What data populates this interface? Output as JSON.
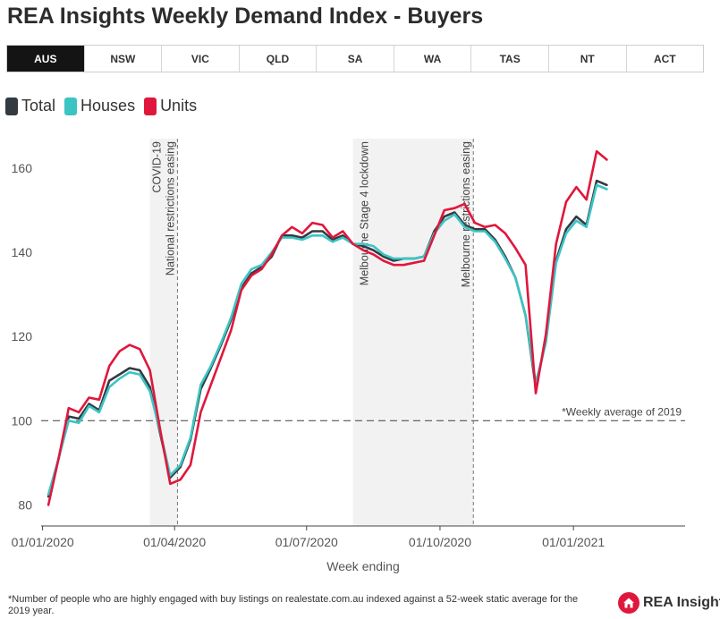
{
  "header": {
    "title": "REA Insights Weekly Demand Index - Buyers"
  },
  "tabs": [
    {
      "label": "AUS",
      "active": true
    },
    {
      "label": "NSW",
      "active": false
    },
    {
      "label": "VIC",
      "active": false
    },
    {
      "label": "QLD",
      "active": false
    },
    {
      "label": "SA",
      "active": false
    },
    {
      "label": "WA",
      "active": false
    },
    {
      "label": "TAS",
      "active": false
    },
    {
      "label": "NT",
      "active": false
    },
    {
      "label": "ACT",
      "active": false
    }
  ],
  "legend": [
    {
      "label": "Total",
      "color": "#333a40"
    },
    {
      "label": "Houses",
      "color": "#3cc4c4"
    },
    {
      "label": "Units",
      "color": "#e0173c"
    }
  ],
  "chart_data": {
    "type": "line",
    "xlabel": "Week ending",
    "ylabel": "",
    "ylim": [
      75,
      167
    ],
    "yticks": [
      80,
      100,
      120,
      140,
      160
    ],
    "xticks": [
      {
        "label": "01/01/2020",
        "date": "2020-01-01"
      },
      {
        "label": "01/04/2020",
        "date": "2020-04-01"
      },
      {
        "label": "01/07/2020",
        "date": "2020-07-01"
      },
      {
        "label": "01/10/2020",
        "date": "2020-10-01"
      },
      {
        "label": "01/01/2021",
        "date": "2021-01-01"
      }
    ],
    "x_start": "2020-01-05",
    "x_step_days": 7,
    "reference_line": {
      "value": 100,
      "label": "*Weekly average of 2019"
    },
    "shaded_periods": [
      {
        "from": "2020-03-15",
        "to": "2020-04-03"
      },
      {
        "from": "2020-08-02",
        "to": "2020-10-24"
      }
    ],
    "event_lines": [
      {
        "date": "2020-04-03",
        "label": "COVID-19\nNational restrictions easing"
      },
      {
        "date": "2020-10-24",
        "label": "Melbourne restrictions easing"
      },
      {
        "date": "2020-08-02",
        "label": "Melbourne Stage 4 lockdown"
      }
    ],
    "series": [
      {
        "name": "Total",
        "color": "#333a40",
        "values": [
          82,
          91,
          101,
          100.5,
          104,
          102.5,
          109.5,
          111,
          112.5,
          112,
          108,
          97,
          86.5,
          89,
          95.5,
          107.5,
          112.5,
          118,
          124,
          131.5,
          135,
          136.5,
          139,
          144,
          144,
          143.5,
          145,
          145,
          143,
          144,
          142,
          141.5,
          140.5,
          139,
          138,
          138.5,
          138.5,
          139,
          145,
          148.5,
          149.5,
          146.5,
          145.5,
          145.5,
          143,
          139,
          134,
          125,
          108,
          119,
          138,
          145.5,
          148.5,
          146.5,
          157,
          156
        ]
      },
      {
        "name": "Houses",
        "color": "#3cc4c4",
        "values": [
          82.5,
          91,
          100,
          99.5,
          103.5,
          102,
          108,
          110,
          111.5,
          111,
          107,
          97.5,
          87,
          89.5,
          96,
          108.5,
          113,
          118.5,
          124.5,
          132.5,
          136,
          137,
          140,
          143.5,
          143.5,
          143,
          144,
          144,
          142.5,
          143.5,
          142,
          142,
          141.5,
          139.5,
          138.5,
          138.5,
          138.5,
          139,
          144.5,
          147.5,
          149,
          146,
          145,
          145,
          142.5,
          138.5,
          134,
          125,
          109,
          118.5,
          137.5,
          144.5,
          147.5,
          146,
          156,
          155
        ]
      },
      {
        "name": "Units",
        "color": "#e0173c",
        "values": [
          80,
          91,
          103,
          102,
          105.5,
          105,
          113,
          116.5,
          118,
          117,
          112,
          98,
          85,
          86,
          89.5,
          102,
          108.5,
          115,
          121.5,
          131,
          134.5,
          136,
          139.5,
          144,
          146,
          144.5,
          147,
          146.5,
          143.5,
          145,
          142,
          140.5,
          139.5,
          138,
          137,
          137,
          137.5,
          138,
          144,
          150,
          150.5,
          151.5,
          147,
          146,
          146.5,
          144.5,
          141,
          137,
          106.5,
          120.5,
          142,
          152,
          155.5,
          152.5,
          164,
          162
        ]
      }
    ]
  },
  "footnote": "*Number of people who are highly engaged with buy listings on realestate.com.au indexed against a 52-week static average for the 2019 year.",
  "brand": {
    "name": "REA Insights",
    "color": "#e0173c"
  }
}
